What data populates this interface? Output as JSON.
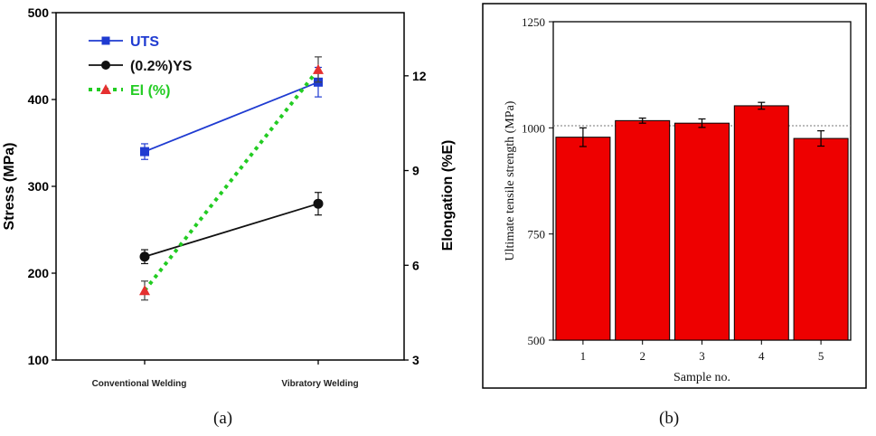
{
  "chart_data": [
    {
      "type": "line",
      "panel": "a",
      "categories": [
        "Conventional Welding",
        "Vibratory Welding"
      ],
      "ylabel_left": "Stress (MPa)",
      "ylim_left": [
        100,
        500
      ],
      "yticks_left": [
        100,
        200,
        300,
        400,
        500
      ],
      "ylabel_right": "Elongation (%E)",
      "ylim_right": [
        3,
        14
      ],
      "yticks_right": [
        3,
        6,
        9,
        12
      ],
      "legend_position": "top-left",
      "series": [
        {
          "name": "UTS",
          "axis": "left",
          "values": [
            340,
            420
          ],
          "errors": [
            9,
            17
          ],
          "color": "#1f3bd1",
          "marker": "square",
          "line": "solid"
        },
        {
          "name": "(0.2%)YS",
          "axis": "left",
          "values": [
            219,
            280
          ],
          "errors": [
            8,
            13
          ],
          "color": "#111111",
          "marker": "circle",
          "line": "solid"
        },
        {
          "name": "El (%)",
          "axis": "right",
          "values": [
            5.2,
            12.2
          ],
          "errors": [
            0.3,
            0.4
          ],
          "color": "#22cc22",
          "marker_color": "#e53030",
          "marker": "triangle",
          "line": "dotted"
        }
      ]
    },
    {
      "type": "bar",
      "panel": "b",
      "categories": [
        "1",
        "2",
        "3",
        "4",
        "5"
      ],
      "values": [
        978,
        1017,
        1011,
        1052,
        975
      ],
      "errors": [
        22,
        6,
        10,
        8,
        18
      ],
      "xlabel": "Sample no.",
      "ylabel": "Ultimate tensile strength (MPa)",
      "ylim": [
        500,
        1250
      ],
      "yticks": [
        500,
        750,
        1000,
        1250
      ],
      "reference_line": 1005,
      "bar_color": "#ee0000"
    }
  ],
  "captions": {
    "a": "(a)",
    "b": "(b)"
  }
}
